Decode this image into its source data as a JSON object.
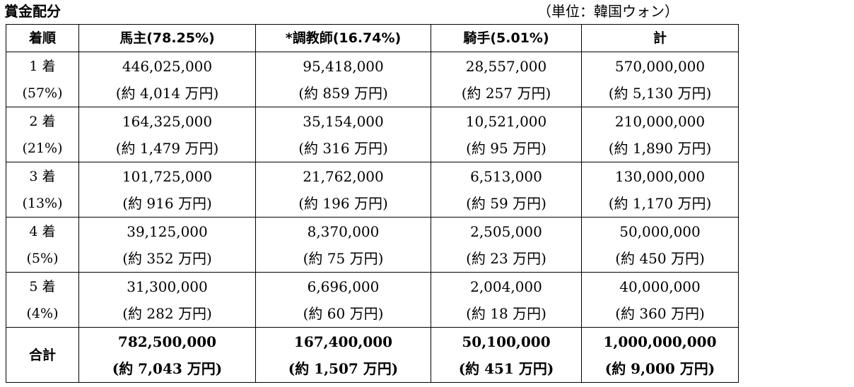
{
  "title": "賞金配分",
  "unit_note": "（単位：韓国ウォン）",
  "table": {
    "headers": [
      "着順",
      "馬主(78.25%)",
      "*調教師(16.74%)",
      "騎手(5.01%)",
      "計"
    ],
    "rows": [
      {
        "rank": "1 着",
        "share": "(57%)",
        "cells": [
          {
            "amount": "446,025,000",
            "approx": "(約 4,014 万円)"
          },
          {
            "amount": "95,418,000",
            "approx": "(約 859 万円)"
          },
          {
            "amount": "28,557,000",
            "approx": "(約 257 万円)"
          },
          {
            "amount": "570,000,000",
            "approx": "(約 5,130 万円)"
          }
        ]
      },
      {
        "rank": "2 着",
        "share": "(21%)",
        "cells": [
          {
            "amount": "164,325,000",
            "approx": "(約 1,479 万円)"
          },
          {
            "amount": "35,154,000",
            "approx": "(約 316 万円)"
          },
          {
            "amount": "10,521,000",
            "approx": "(約 95 万円)"
          },
          {
            "amount": "210,000,000",
            "approx": "(約 1,890 万円)"
          }
        ]
      },
      {
        "rank": "3 着",
        "share": "(13%)",
        "cells": [
          {
            "amount": "101,725,000",
            "approx": "(約 916 万円)"
          },
          {
            "amount": "21,762,000",
            "approx": "(約 196 万円)"
          },
          {
            "amount": "6,513,000",
            "approx": "(約 59 万円)"
          },
          {
            "amount": "130,000,000",
            "approx": "(約 1,170 万円)"
          }
        ]
      },
      {
        "rank": "4 着",
        "share": "(5%)",
        "cells": [
          {
            "amount": "39,125,000",
            "approx": "(約 352 万円)"
          },
          {
            "amount": "8,370,000",
            "approx": "(約 75 万円)"
          },
          {
            "amount": "2,505,000",
            "approx": "(約 23 万円)"
          },
          {
            "amount": "50,000,000",
            "approx": "(約 450 万円)"
          }
        ]
      },
      {
        "rank": "5 着",
        "share": "(4%)",
        "cells": [
          {
            "amount": "31,300,000",
            "approx": "(約 282 万円)"
          },
          {
            "amount": "6,696,000",
            "approx": "(約 60 万円)"
          },
          {
            "amount": "2,004,000",
            "approx": "(約 18 万円)"
          },
          {
            "amount": "40,000,000",
            "approx": "(約 360 万円)"
          }
        ]
      }
    ],
    "total": {
      "label": "合計",
      "cells": [
        {
          "amount": "782,500,000",
          "approx": "(約 7,043 万円)"
        },
        {
          "amount": "167,400,000",
          "approx": "(約 1,507 万円)"
        },
        {
          "amount": "50,100,000",
          "approx": "(約 451 万円)"
        },
        {
          "amount": "1,000,000,000",
          "approx": "(約 9,000 万円)"
        }
      ]
    }
  }
}
